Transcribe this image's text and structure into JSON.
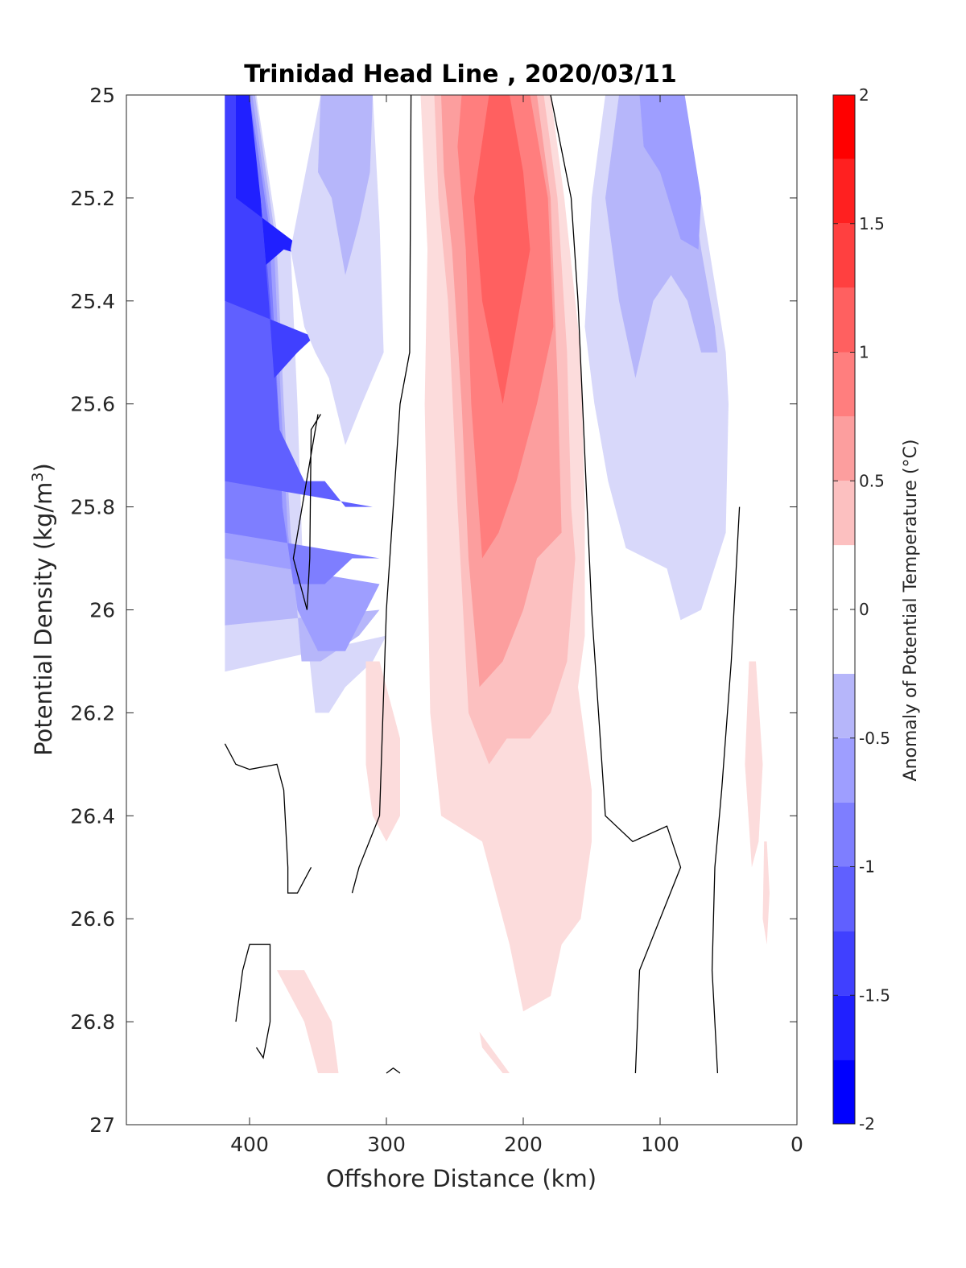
{
  "chart_data": {
    "type": "contourf",
    "title": "Trinidad Head Line , 2020/03/11",
    "xlabel": "Offshore Distance (km)",
    "ylabel": "Potential Density (kg/m",
    "ylabel_sup": "3",
    "ylabel_close": ")",
    "xlim": [
      490,
      0
    ],
    "x_reversed": true,
    "ylim": [
      25,
      27
    ],
    "y_reversed": true,
    "xticks": [
      400,
      300,
      200,
      100,
      0
    ],
    "xtick_labels": [
      "400",
      "300",
      "200",
      "100",
      "0"
    ],
    "yticks": [
      25,
      25.2,
      25.4,
      25.6,
      25.8,
      26,
      26.2,
      26.4,
      26.6,
      26.8,
      27
    ],
    "ytick_labels": [
      "25",
      "25.2",
      "25.4",
      "25.6",
      "25.8",
      "26",
      "26.2",
      "26.4",
      "26.6",
      "26.8",
      "27"
    ],
    "colorbar": {
      "label": "Anomaly of Potential Temperature (°C)",
      "range": [
        -2,
        2
      ],
      "ticks": [
        -2,
        -1.5,
        -1,
        -0.5,
        0,
        0.5,
        1,
        1.5,
        2
      ],
      "tick_labels": [
        "-2",
        "-1.5",
        "-1",
        "-0.5",
        "0",
        "0.5",
        "1",
        "1.5",
        "2"
      ],
      "levels": [
        -2,
        -1.75,
        -1.5,
        -1.25,
        -1,
        -0.75,
        -0.5,
        -0.25,
        0.25,
        0.5,
        0.75,
        1,
        1.25,
        1.5,
        1.75,
        2
      ],
      "colors": [
        "#0000ff",
        "#2020ff",
        "#4040ff",
        "#6060ff",
        "#7e7eff",
        "#9e9eff",
        "#b6b6fa",
        "#d8d8fa",
        "#ffffff",
        "#fcdcdc",
        "#fcc0c0",
        "#fc9e9e",
        "#ff7e7e",
        "#ff6060",
        "#ff4040",
        "#ff2020",
        "#ff0000"
      ]
    },
    "filled_regions": [
      {
        "level": -0.25,
        "points": [
          [
            418,
            25.0
          ],
          [
            395,
            25.0
          ],
          [
            378,
            25.3
          ],
          [
            370,
            25.3
          ],
          [
            365,
            25.6
          ],
          [
            360,
            26.0
          ],
          [
            352,
            26.2
          ],
          [
            342,
            26.2
          ],
          [
            330,
            26.15
          ],
          [
            310,
            26.1
          ],
          [
            300,
            26.05
          ],
          [
            418,
            26.12
          ]
        ]
      },
      {
        "level": -0.5,
        "points": [
          [
            418,
            25.0
          ],
          [
            396,
            25.0
          ],
          [
            380,
            25.3
          ],
          [
            375,
            25.6
          ],
          [
            370,
            25.85
          ],
          [
            362,
            26.1
          ],
          [
            348,
            26.1
          ],
          [
            320,
            26.05
          ],
          [
            305,
            26.0
          ],
          [
            418,
            26.03
          ]
        ]
      },
      {
        "level": -0.75,
        "points": [
          [
            418,
            25.0
          ],
          [
            398,
            25.0
          ],
          [
            382,
            25.3
          ],
          [
            377,
            25.6
          ],
          [
            372,
            25.85
          ],
          [
            365,
            26.0
          ],
          [
            350,
            26.08
          ],
          [
            330,
            26.08
          ],
          [
            305,
            25.95
          ],
          [
            418,
            25.9
          ]
        ]
      },
      {
        "level": -1,
        "points": [
          [
            418,
            25.0
          ],
          [
            400,
            25.0
          ],
          [
            386,
            25.25
          ],
          [
            380,
            25.55
          ],
          [
            376,
            25.8
          ],
          [
            368,
            25.95
          ],
          [
            345,
            25.95
          ],
          [
            325,
            25.9
          ],
          [
            305,
            25.9
          ],
          [
            418,
            25.85
          ]
        ]
      },
      {
        "level": -1.25,
        "points": [
          [
            418,
            25.0
          ],
          [
            402,
            25.0
          ],
          [
            388,
            25.3
          ],
          [
            382,
            25.5
          ],
          [
            378,
            25.65
          ],
          [
            360,
            25.75
          ],
          [
            345,
            25.75
          ],
          [
            330,
            25.8
          ],
          [
            310,
            25.8
          ],
          [
            418,
            25.75
          ]
        ]
      },
      {
        "level": -1.5,
        "points": [
          [
            418,
            25.0
          ],
          [
            404,
            25.0
          ],
          [
            392,
            25.2
          ],
          [
            386,
            25.4
          ],
          [
            382,
            25.55
          ],
          [
            365,
            25.5
          ],
          [
            345,
            25.45
          ],
          [
            325,
            25.5
          ],
          [
            418,
            25.4
          ]
        ]
      },
      {
        "level": -1.75,
        "points": [
          [
            410,
            25.0
          ],
          [
            400,
            25.0
          ],
          [
            392,
            25.2
          ],
          [
            388,
            25.33
          ],
          [
            375,
            25.3
          ],
          [
            350,
            25.32
          ],
          [
            410,
            25.2
          ]
        ]
      },
      {
        "level": -0.25,
        "points": [
          [
            348,
            25.0
          ],
          [
            310,
            25.0
          ],
          [
            305,
            25.25
          ],
          [
            302,
            25.5
          ],
          [
            318,
            25.6
          ],
          [
            330,
            25.68
          ],
          [
            342,
            25.55
          ],
          [
            352,
            25.5
          ],
          [
            360,
            25.45
          ],
          [
            370,
            25.3
          ]
        ]
      },
      {
        "level": -0.5,
        "points": [
          [
            348,
            25.0
          ],
          [
            310,
            25.0
          ],
          [
            312,
            25.15
          ],
          [
            320,
            25.25
          ],
          [
            330,
            25.35
          ],
          [
            340,
            25.2
          ],
          [
            350,
            25.15
          ]
        ]
      },
      {
        "level": -0.25,
        "points": [
          [
            140,
            25.0
          ],
          [
            100,
            25.0
          ],
          [
            75,
            25.12
          ],
          [
            58,
            25.4
          ],
          [
            52,
            25.5
          ],
          [
            50,
            25.6
          ],
          [
            52,
            25.85
          ],
          [
            58,
            25.9
          ],
          [
            70,
            26.0
          ],
          [
            85,
            26.02
          ],
          [
            95,
            25.92
          ],
          [
            110,
            25.9
          ],
          [
            125,
            25.88
          ],
          [
            138,
            25.75
          ],
          [
            148,
            25.6
          ],
          [
            155,
            25.45
          ],
          [
            150,
            25.2
          ]
        ]
      },
      {
        "level": -0.5,
        "points": [
          [
            130,
            25.0
          ],
          [
            100,
            25.0
          ],
          [
            80,
            25.12
          ],
          [
            70,
            25.3
          ],
          [
            60,
            25.45
          ],
          [
            58,
            25.5
          ],
          [
            70,
            25.5
          ],
          [
            80,
            25.4
          ],
          [
            92,
            25.35
          ],
          [
            105,
            25.4
          ],
          [
            118,
            25.55
          ],
          [
            130,
            25.4
          ],
          [
            140,
            25.2
          ]
        ]
      },
      {
        "level": -0.75,
        "points": [
          [
            115,
            25.0
          ],
          [
            100,
            25.0
          ],
          [
            82,
            25.0
          ],
          [
            70,
            25.2
          ],
          [
            72,
            25.3
          ],
          [
            85,
            25.28
          ],
          [
            100,
            25.15
          ],
          [
            112,
            25.1
          ]
        ]
      },
      {
        "level": 0.25,
        "points": [
          [
            275,
            25.0
          ],
          [
            180,
            25.0
          ],
          [
            170,
            25.2
          ],
          [
            158,
            25.5
          ],
          [
            155,
            25.8
          ],
          [
            155,
            26.05
          ],
          [
            160,
            26.15
          ],
          [
            155,
            26.25
          ],
          [
            150,
            26.35
          ],
          [
            150,
            26.45
          ],
          [
            158,
            26.6
          ],
          [
            172,
            26.65
          ],
          [
            180,
            26.75
          ],
          [
            200,
            26.78
          ],
          [
            210,
            26.65
          ],
          [
            220,
            26.55
          ],
          [
            230,
            26.45
          ],
          [
            260,
            26.4
          ],
          [
            268,
            26.2
          ],
          [
            270,
            25.9
          ],
          [
            272,
            25.6
          ],
          [
            270,
            25.3
          ]
        ]
      },
      {
        "level": 0.5,
        "points": [
          [
            265,
            25.0
          ],
          [
            185,
            25.0
          ],
          [
            175,
            25.2
          ],
          [
            168,
            25.5
          ],
          [
            165,
            25.8
          ],
          [
            162,
            25.9
          ],
          [
            168,
            26.1
          ],
          [
            180,
            26.2
          ],
          [
            195,
            26.25
          ],
          [
            212,
            26.25
          ],
          [
            225,
            26.3
          ],
          [
            240,
            26.2
          ],
          [
            248,
            25.8
          ],
          [
            255,
            25.4
          ],
          [
            262,
            25.2
          ]
        ]
      },
      {
        "level": 0.75,
        "points": [
          [
            260,
            25.0
          ],
          [
            190,
            25.0
          ],
          [
            180,
            25.2
          ],
          [
            175,
            25.55
          ],
          [
            172,
            25.85
          ],
          [
            190,
            25.9
          ],
          [
            200,
            26.0
          ],
          [
            215,
            26.1
          ],
          [
            232,
            26.15
          ],
          [
            240,
            25.9
          ],
          [
            245,
            25.6
          ],
          [
            252,
            25.3
          ],
          [
            258,
            25.15
          ]
        ]
      },
      {
        "level": 1,
        "points": [
          [
            245,
            25.0
          ],
          [
            195,
            25.0
          ],
          [
            182,
            25.2
          ],
          [
            178,
            25.45
          ],
          [
            190,
            25.6
          ],
          [
            205,
            25.75
          ],
          [
            218,
            25.85
          ],
          [
            230,
            25.9
          ],
          [
            238,
            25.6
          ],
          [
            242,
            25.3
          ],
          [
            248,
            25.1
          ]
        ]
      },
      {
        "level": 1.25,
        "points": [
          [
            225,
            25.0
          ],
          [
            210,
            25.0
          ],
          [
            200,
            25.15
          ],
          [
            195,
            25.3
          ],
          [
            205,
            25.45
          ],
          [
            215,
            25.6
          ],
          [
            230,
            25.4
          ],
          [
            236,
            25.2
          ]
        ]
      },
      {
        "level": 0.25,
        "points": [
          [
            315,
            26.1
          ],
          [
            305,
            26.1
          ],
          [
            290,
            26.25
          ],
          [
            290,
            26.4
          ],
          [
            300,
            26.45
          ],
          [
            310,
            26.4
          ],
          [
            315,
            26.3
          ]
        ]
      },
      {
        "level": 0.25,
        "points": [
          [
            380,
            26.7
          ],
          [
            360,
            26.7
          ],
          [
            340,
            26.8
          ],
          [
            335,
            26.9
          ],
          [
            350,
            26.9
          ],
          [
            360,
            26.8
          ],
          [
            370,
            26.75
          ]
        ]
      },
      {
        "level": 0.25,
        "points": [
          [
            232,
            26.82
          ],
          [
            210,
            26.9
          ],
          [
            215,
            26.9
          ],
          [
            230,
            26.85
          ]
        ]
      },
      {
        "level": 0.25,
        "points": [
          [
            30,
            26.1
          ],
          [
            25,
            26.3
          ],
          [
            28,
            26.45
          ],
          [
            33,
            26.5
          ],
          [
            38,
            26.3
          ],
          [
            35,
            26.1
          ]
        ]
      },
      {
        "level": 0.25,
        "points": [
          [
            22,
            26.45
          ],
          [
            20,
            26.55
          ],
          [
            22,
            26.65
          ],
          [
            25,
            26.6
          ],
          [
            24,
            26.45
          ]
        ]
      }
    ],
    "zero_contours": [
      {
        "points": [
          [
            282,
            25.0
          ],
          [
            283,
            25.5
          ],
          [
            290,
            25.6
          ],
          [
            295,
            25.8
          ],
          [
            300,
            26.0
          ],
          [
            305,
            26.4
          ],
          [
            320,
            26.5
          ],
          [
            325,
            26.55
          ]
        ]
      },
      {
        "points": [
          [
            180,
            25.0
          ],
          [
            165,
            25.2
          ],
          [
            160,
            25.4
          ],
          [
            155,
            25.7
          ],
          [
            150,
            26.0
          ],
          [
            145,
            26.2
          ],
          [
            140,
            26.4
          ],
          [
            120,
            26.45
          ],
          [
            95,
            26.42
          ],
          [
            85,
            26.5
          ],
          [
            100,
            26.6
          ],
          [
            115,
            26.7
          ],
          [
            118,
            26.9
          ]
        ]
      },
      {
        "points": [
          [
            348,
            25.62
          ],
          [
            355,
            25.65
          ],
          [
            356,
            25.9
          ],
          [
            358,
            26.0
          ],
          [
            368,
            25.9
          ],
          [
            350,
            25.62
          ]
        ]
      },
      {
        "points": [
          [
            418,
            26.26
          ],
          [
            410,
            26.3
          ],
          [
            400,
            26.31
          ],
          [
            380,
            26.3
          ],
          [
            375,
            26.35
          ],
          [
            372,
            26.5
          ],
          [
            372,
            26.55
          ],
          [
            365,
            26.55
          ],
          [
            355,
            26.5
          ]
        ]
      },
      {
        "points": [
          [
            410,
            26.8
          ],
          [
            405,
            26.7
          ],
          [
            400,
            26.65
          ],
          [
            385,
            26.65
          ],
          [
            385,
            26.8
          ],
          [
            390,
            26.87
          ],
          [
            395,
            26.85
          ]
        ]
      },
      {
        "points": [
          [
            42,
            25.8
          ],
          [
            48,
            26.1
          ],
          [
            55,
            26.35
          ],
          [
            60,
            26.5
          ],
          [
            62,
            26.7
          ],
          [
            58,
            26.9
          ]
        ]
      },
      {
        "points": [
          [
            290,
            26.9
          ],
          [
            295,
            26.89
          ],
          [
            300,
            26.9
          ]
        ]
      }
    ]
  }
}
